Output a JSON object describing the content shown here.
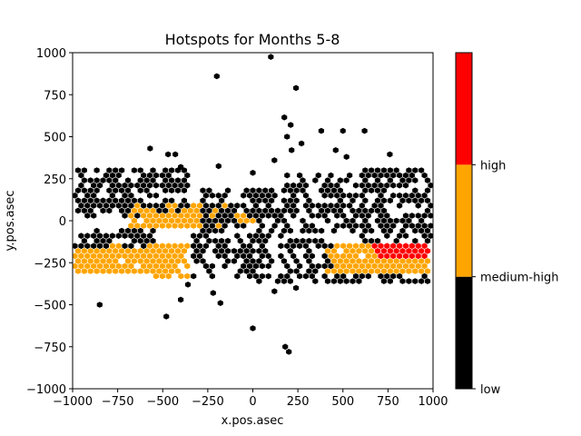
{
  "chart_data": {
    "type": "hexbin",
    "title": "Hotspots for Months 5-8",
    "xlabel": "x.pos.asec",
    "ylabel": "y.pos.asec",
    "xlim": [
      -1000,
      1000
    ],
    "ylim": [
      -1000,
      1000
    ],
    "xticks": [
      -1000,
      -750,
      -500,
      -250,
      0,
      250,
      500,
      750,
      1000
    ],
    "yticks": [
      -1000,
      -750,
      -500,
      -250,
      0,
      250,
      500,
      750,
      1000
    ],
    "xtick_labels": [
      "−1000",
      "−750",
      "−500",
      "−250",
      "0",
      "250",
      "500",
      "750",
      "1000"
    ],
    "ytick_labels": [
      "−1000",
      "−750",
      "−500",
      "−250",
      "0",
      "250",
      "500",
      "750",
      "1000"
    ],
    "grid": false,
    "colorbar": {
      "levels": [
        "low",
        "medium-high",
        "high"
      ],
      "colors": [
        "#000000",
        "#ffa500",
        "#ff0000"
      ]
    },
    "hex_radius": 20,
    "bins": [
      {
        "level": "medium-high",
        "x_range": [
          -1000,
          -550
        ],
        "y_range": [
          -320,
          -150
        ]
      },
      {
        "level": "medium-high",
        "x_range": [
          -690,
          -150
        ],
        "y_range": [
          -30,
          90
        ]
      },
      {
        "level": "medium-high",
        "x_range": [
          -160,
          0
        ],
        "y_range": [
          -20,
          30
        ]
      },
      {
        "level": "medium-high",
        "x_range": [
          -560,
          -350
        ],
        "y_range": [
          -330,
          -150
        ]
      },
      {
        "level": "medium-high",
        "x_range": [
          400,
          980
        ],
        "y_range": [
          -310,
          -130
        ]
      },
      {
        "level": "high",
        "x_range": [
          660,
          980
        ],
        "y_range": [
          -220,
          -150
        ]
      },
      {
        "level": "low",
        "x_range": [
          -1000,
          -640
        ],
        "y_range": [
          20,
          300
        ]
      },
      {
        "level": "low",
        "x_range": [
          -1000,
          -550
        ],
        "y_range": [
          -150,
          -60
        ]
      },
      {
        "level": "low",
        "x_range": [
          -640,
          -360
        ],
        "y_range": [
          60,
          300
        ]
      },
      {
        "level": "low",
        "x_range": [
          -350,
          0
        ],
        "y_range": [
          -330,
          -90
        ]
      },
      {
        "level": "low",
        "x_range": [
          -290,
          180
        ],
        "y_range": [
          -100,
          200
        ]
      },
      {
        "level": "low",
        "x_range": [
          0,
          440
        ],
        "y_range": [
          -380,
          -100
        ]
      },
      {
        "level": "low",
        "x_range": [
          180,
          640
        ],
        "y_range": [
          -80,
          280
        ]
      },
      {
        "level": "low",
        "x_range": [
          600,
          1000
        ],
        "y_range": [
          -120,
          300
        ]
      },
      {
        "level": "low",
        "x_range": [
          440,
          980
        ],
        "y_range": [
          -380,
          -320
        ]
      }
    ],
    "outliers": [
      {
        "x": 100,
        "y": 975
      },
      {
        "x": -200,
        "y": 860
      },
      {
        "x": 240,
        "y": 790
      },
      {
        "x": 175,
        "y": 615
      },
      {
        "x": 210,
        "y": 570
      },
      {
        "x": 190,
        "y": 500
      },
      {
        "x": 620,
        "y": 535
      },
      {
        "x": 500,
        "y": 535
      },
      {
        "x": 380,
        "y": 535
      },
      {
        "x": 270,
        "y": 460
      },
      {
        "x": 215,
        "y": 420
      },
      {
        "x": -570,
        "y": 430
      },
      {
        "x": -470,
        "y": 395
      },
      {
        "x": -430,
        "y": 395
      },
      {
        "x": -190,
        "y": 325
      },
      {
        "x": -400,
        "y": 320
      },
      {
        "x": 0,
        "y": 285
      },
      {
        "x": 120,
        "y": 360
      },
      {
        "x": 460,
        "y": 420
      },
      {
        "x": 520,
        "y": 380
      },
      {
        "x": 760,
        "y": 395
      },
      {
        "x": -850,
        "y": -500
      },
      {
        "x": -480,
        "y": -570
      },
      {
        "x": -180,
        "y": -490
      },
      {
        "x": -220,
        "y": -430
      },
      {
        "x": 0,
        "y": -640
      },
      {
        "x": 180,
        "y": -750
      },
      {
        "x": 200,
        "y": -780
      },
      {
        "x": -360,
        "y": -380
      },
      {
        "x": -400,
        "y": -470
      },
      {
        "x": 120,
        "y": -420
      },
      {
        "x": 240,
        "y": -400
      }
    ]
  }
}
